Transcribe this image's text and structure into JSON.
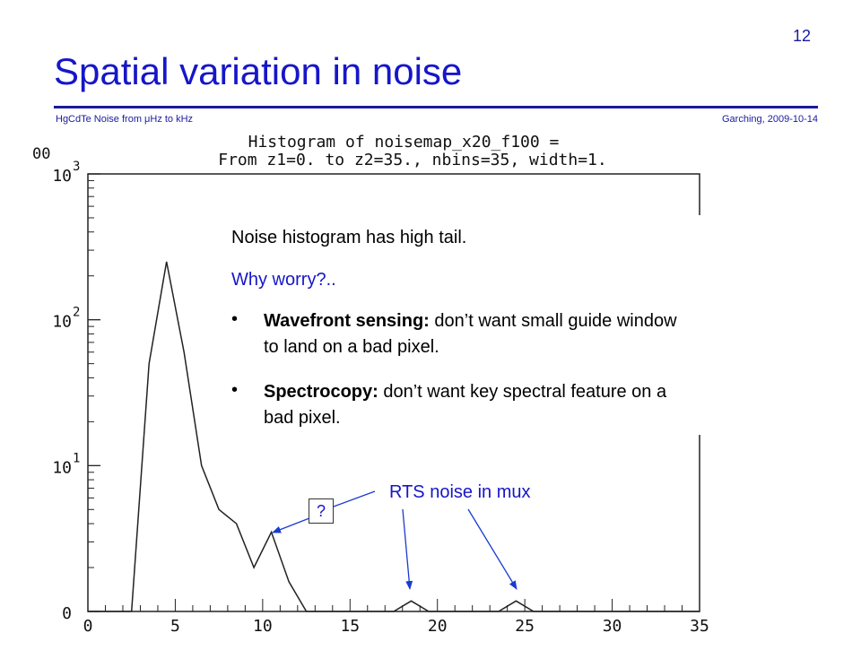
{
  "slide": {
    "page_number": "12",
    "title": "Spatial variation in noise",
    "footer_left": "HgCdTe Noise from μHz to kHz",
    "footer_right": "Garching, 2009-10-14"
  },
  "textbox": {
    "line1": "Noise histogram has high tail.",
    "line2": "Why worry?..",
    "bullet1_bold": "Wavefront sensing:",
    "bullet1_rest": " don’t want small guide window",
    "bullet1_cont": "to land on a bad pixel.",
    "bullet2_bold": "Spectrocopy:",
    "bullet2_rest": "  don’t want key spectral feature on a",
    "bullet2_cont": "bad pixel.",
    "bullet_char": "•"
  },
  "annotations": {
    "question": "?",
    "rts": "RTS noise in mux"
  },
  "colors": {
    "accent": "#1616c8",
    "rule": "#1a1a9a",
    "arrow": "#1a3ad0"
  },
  "chart_data": {
    "type": "line",
    "title_line1": "Histogram of noisemap_x20_f100 =",
    "title_line2": "From z1=0. to z2=35., nbins=35, width=1.",
    "y_scale": "log",
    "xlim": [
      0,
      35
    ],
    "ylim": [
      1,
      1000
    ],
    "x_ticks": [
      "0",
      "5",
      "10",
      "15",
      "20",
      "25",
      "30",
      "35"
    ],
    "y_top_clipped": "00",
    "y_ticks": [
      {
        "base": "10",
        "exp": "3",
        "value": 1000
      },
      {
        "base": "10",
        "exp": "2",
        "value": 100
      },
      {
        "base": "10",
        "exp": "1",
        "value": 10
      },
      {
        "base": "0",
        "exp": "",
        "value": 1
      }
    ],
    "series": [
      {
        "x": [
          2.5,
          3.5,
          4.5,
          5.5,
          6.5,
          7.5,
          8.5,
          9.5,
          10.5,
          11.5,
          12.5,
          17.5,
          18.5,
          19.5,
          23.5,
          24.5,
          25.5
        ],
        "y": [
          1,
          50,
          250,
          60,
          10,
          5,
          4,
          2,
          3.5,
          1.6,
          1,
          1,
          1.18,
          1,
          1,
          1.18,
          1
        ]
      }
    ]
  }
}
